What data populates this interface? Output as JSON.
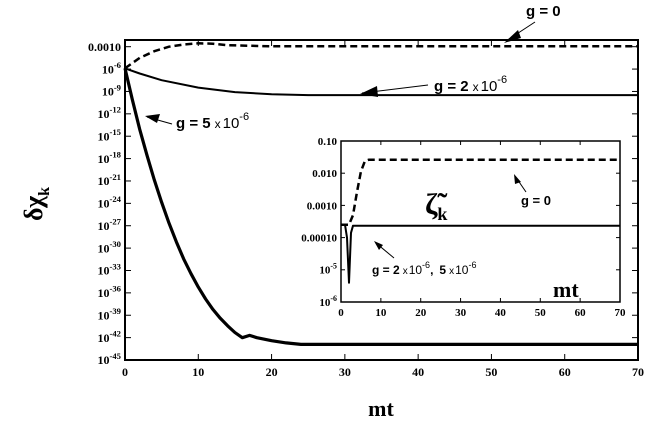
{
  "chart_data": [
    {
      "type": "line",
      "title": "",
      "xlabel": "mt",
      "ylabel": "δχ",
      "ylabel_sub": "k",
      "x_scale": "linear",
      "y_scale": "log",
      "xlim": [
        0,
        70
      ],
      "ylim_exp": [
        -45,
        -2
      ],
      "grid": false,
      "x_ticks": [
        "0",
        "10",
        "20",
        "30",
        "40",
        "50",
        "60",
        "70"
      ],
      "y_ticks": [
        {
          "base": "0.0010",
          "exp": ""
        },
        {
          "base": "10",
          "exp": "-6"
        },
        {
          "base": "10",
          "exp": "-9"
        },
        {
          "base": "10",
          "exp": "-12"
        },
        {
          "base": "10",
          "exp": "-15"
        },
        {
          "base": "10",
          "exp": "-18"
        },
        {
          "base": "10",
          "exp": "-21"
        },
        {
          "base": "10",
          "exp": "-24"
        },
        {
          "base": "10",
          "exp": "-27"
        },
        {
          "base": "10",
          "exp": "-30"
        },
        {
          "base": "10",
          "exp": "-33"
        },
        {
          "base": "10",
          "exp": "-36"
        },
        {
          "base": "10",
          "exp": "-39"
        },
        {
          "base": "10",
          "exp": "-42"
        },
        {
          "base": "10",
          "exp": "-45"
        }
      ],
      "series": [
        {
          "name": "g = 0",
          "style": "dashed",
          "x": [
            0,
            2,
            4,
            6,
            8,
            10,
            12,
            14,
            20,
            30,
            40,
            50,
            60,
            70
          ],
          "log10_y": [
            -5.8,
            -4.4,
            -3.5,
            -2.9,
            -2.6,
            -2.45,
            -2.5,
            -2.7,
            -2.85,
            -2.85,
            -2.85,
            -2.85,
            -2.85,
            -2.85
          ]
        },
        {
          "name": "g = 2 x 10-6",
          "style": "solid",
          "x": [
            0,
            2,
            5,
            10,
            15,
            20,
            25,
            30,
            40,
            50,
            60,
            70
          ],
          "log10_y": [
            -5.8,
            -6.5,
            -7.4,
            -8.4,
            -9.0,
            -9.3,
            -9.4,
            -9.4,
            -9.4,
            -9.4,
            -9.4,
            -9.4
          ]
        },
        {
          "name": "g = 5 x 10-6",
          "style": "solid-thick",
          "x": [
            0,
            1,
            2,
            3,
            4,
            5,
            6,
            7,
            8,
            9,
            10,
            11,
            12,
            13,
            14,
            15,
            16,
            17,
            18,
            20,
            22,
            24,
            30,
            40,
            50,
            60,
            70
          ],
          "log10_y": [
            -5.8,
            -10,
            -14,
            -17.5,
            -20.8,
            -23.8,
            -26.6,
            -29.1,
            -31.4,
            -33.4,
            -35.2,
            -36.8,
            -38.2,
            -39.4,
            -40.4,
            -41.3,
            -42.0,
            -41.7,
            -42.0,
            -42.4,
            -42.7,
            -42.9,
            -42.9,
            -42.9,
            -42.9,
            -42.9,
            -42.9
          ]
        }
      ],
      "annotations": [
        {
          "id": "g0",
          "base": "g  =  0",
          "exp": "",
          "tail": ""
        },
        {
          "id": "g2",
          "base": "g  =  2",
          "times": "x",
          "pow": "10",
          "exp": "-6"
        },
        {
          "id": "g5",
          "base": "g  =  5",
          "times": "x",
          "pow": "10",
          "exp": "-6"
        }
      ]
    },
    {
      "type": "line",
      "inset": true,
      "title": "",
      "xlabel": "mt",
      "ylabel": "ζ̃",
      "ylabel_sub": "k",
      "x_scale": "linear",
      "y_scale": "log",
      "xlim": [
        0,
        70
      ],
      "ylim_exp": [
        -6,
        -1
      ],
      "grid": false,
      "x_ticks": [
        "0",
        "10",
        "20",
        "30",
        "40",
        "50",
        "60",
        "70"
      ],
      "y_ticks": [
        {
          "base": "0.10",
          "exp": ""
        },
        {
          "base": "0.010",
          "exp": ""
        },
        {
          "base": "0.0010",
          "exp": ""
        },
        {
          "base": "0.00010",
          "exp": ""
        },
        {
          "base": "10",
          "exp": "-5"
        },
        {
          "base": "10",
          "exp": "-6"
        }
      ],
      "series": [
        {
          "name": "g = 0",
          "style": "dashed",
          "x": [
            0,
            1,
            2,
            3,
            4,
            5,
            6,
            7,
            10,
            20,
            30,
            40,
            50,
            60,
            70
          ],
          "log10_y": [
            -3.6,
            -3.6,
            -3.6,
            -3.3,
            -2.6,
            -1.95,
            -1.62,
            -1.58,
            -1.58,
            -1.58,
            -1.58,
            -1.58,
            -1.58,
            -1.58,
            -1.58
          ]
        },
        {
          "name": "g = 2 x 10-6, 5 x 10-6",
          "style": "solid",
          "x": [
            0,
            1,
            1.5,
            2,
            2.5,
            3,
            5,
            10,
            20,
            30,
            40,
            50,
            60,
            70
          ],
          "log10_y": [
            -3.6,
            -3.6,
            -4.0,
            -5.4,
            -3.85,
            -3.63,
            -3.63,
            -3.63,
            -3.63,
            -3.63,
            -3.63,
            -3.63,
            -3.63,
            -3.63
          ]
        }
      ],
      "annotations": [
        {
          "id": "i0",
          "base": "g  =  0"
        },
        {
          "id": "i2",
          "base": "g  =  2",
          "times": "x",
          "pow": "10",
          "exp": "-6",
          "sep": ",",
          "base2": "5",
          "times2": "x",
          "pow2": "10",
          "exp2": "-6"
        }
      ]
    }
  ]
}
